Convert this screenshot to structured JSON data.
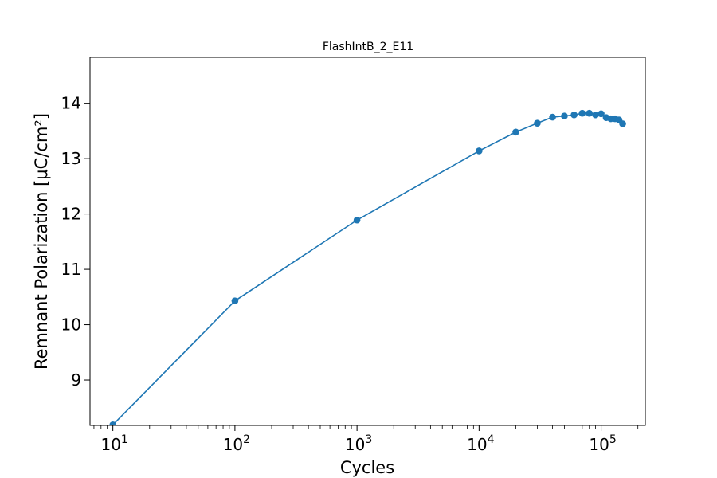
{
  "chart_data": {
    "type": "line",
    "title": "FlashIntB_2_E11",
    "xlabel": "Cycles",
    "ylabel": "Remnant Polarization [μC/cm²]",
    "xscale": "log",
    "xlim": [
      6.5,
      230000
    ],
    "ylim": [
      8.18,
      14.83
    ],
    "grid": false,
    "x_ticks": [
      {
        "value": 10,
        "base": "10",
        "exp": "1"
      },
      {
        "value": 100,
        "base": "10",
        "exp": "2"
      },
      {
        "value": 1000,
        "base": "10",
        "exp": "3"
      },
      {
        "value": 10000,
        "base": "10",
        "exp": "4"
      },
      {
        "value": 100000,
        "base": "10",
        "exp": "5"
      }
    ],
    "y_ticks": [
      9,
      10,
      11,
      12,
      13,
      14
    ],
    "series": [
      {
        "color": "#1f77b4",
        "marker": "circle",
        "x": [
          10,
          100,
          1000,
          10000,
          20000,
          30000,
          40000,
          50000,
          60000,
          70000,
          80000,
          90000,
          100000,
          110000,
          120000,
          130000,
          140000,
          150000
        ],
        "y": [
          8.19,
          10.43,
          11.89,
          13.14,
          13.48,
          13.64,
          13.75,
          13.77,
          13.79,
          13.82,
          13.82,
          13.79,
          13.81,
          13.74,
          13.72,
          13.72,
          13.7,
          13.63
        ]
      }
    ]
  }
}
